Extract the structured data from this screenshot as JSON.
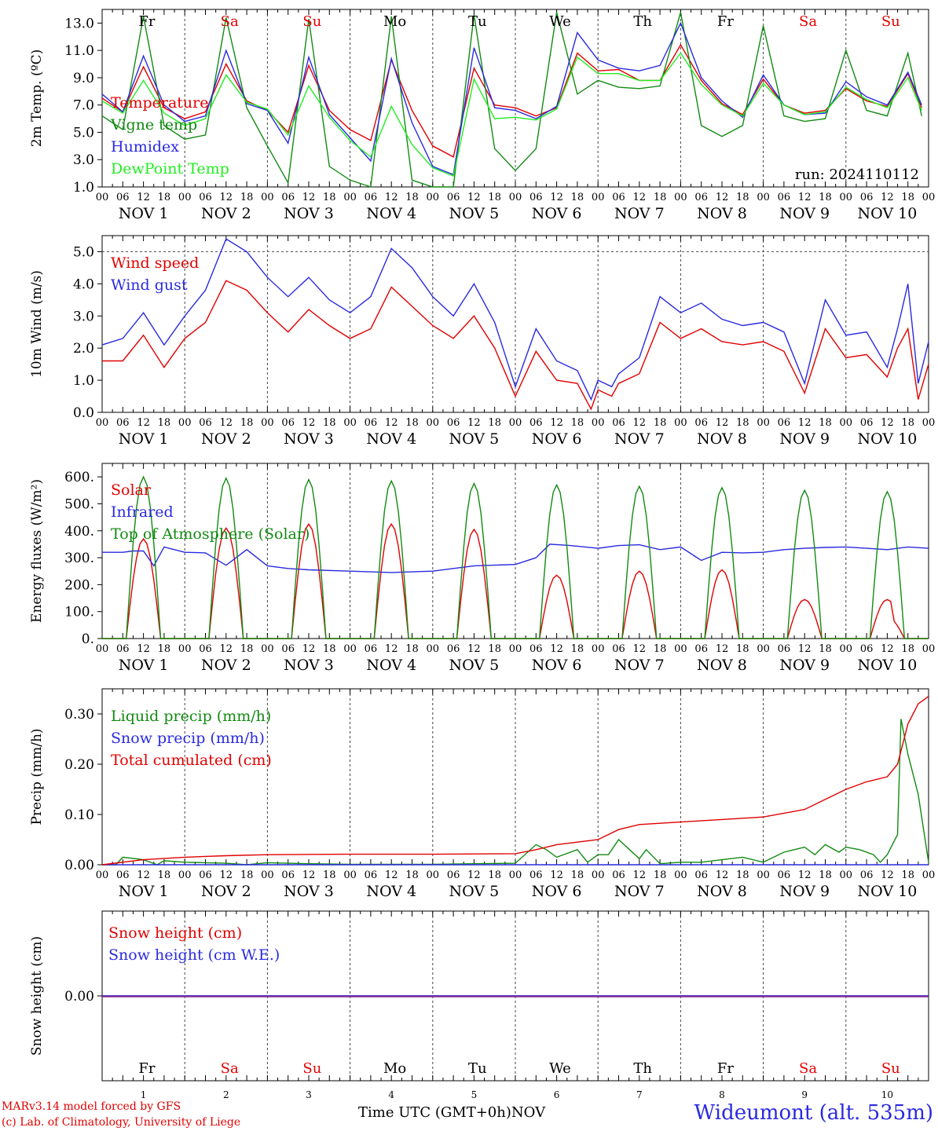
{
  "chart_data": [
    {
      "id": "temperature",
      "type": "line",
      "ylabel": "2m Temp. (ºC)",
      "ylim": [
        1.0,
        14.0
      ],
      "yticks": [
        "13.0",
        "11.0",
        "9.0",
        "7.0",
        "5.0",
        "3.0",
        "1.0"
      ],
      "grid": false,
      "legend_placement": "left",
      "annotation": "run: 2024110112",
      "day_names": [
        "Fr",
        "Sa",
        "Su",
        "Mo",
        "Tu",
        "We",
        "Th",
        "Fr",
        "Sa",
        "Su"
      ],
      "day_name_colors": [
        "#000000",
        "#e00000",
        "#e00000",
        "#000000",
        "#000000",
        "#000000",
        "#000000",
        "#000000",
        "#e00000",
        "#e00000"
      ],
      "x_unit": "hours since 2024-11-01 00 UTC",
      "series": [
        {
          "name": "Temperature",
          "color": "#e00000",
          "x": [
            0,
            6,
            12,
            18,
            24,
            30,
            36,
            42,
            48,
            54,
            60,
            66,
            72,
            78,
            84,
            90,
            96,
            102,
            108,
            114,
            120,
            126,
            132,
            138,
            144,
            150,
            156,
            162,
            168,
            174,
            180,
            186,
            192,
            198,
            204,
            210,
            216,
            222,
            228,
            234,
            238
          ],
          "y": [
            7.5,
            6.5,
            9.8,
            6.8,
            6.0,
            6.5,
            10.0,
            7.3,
            6.6,
            5.0,
            9.9,
            6.6,
            5.2,
            4.4,
            10.3,
            6.6,
            4.0,
            3.2,
            9.7,
            7.0,
            6.8,
            6.2,
            6.8,
            10.8,
            9.5,
            9.6,
            8.8,
            8.8,
            11.4,
            8.8,
            7.1,
            6.3,
            8.9,
            7.0,
            6.4,
            6.6,
            8.2,
            7.3,
            6.9,
            9.3,
            6.8
          ]
        },
        {
          "name": "Vigne temp",
          "color": "#128a12",
          "x": [
            0,
            6,
            12,
            18,
            24,
            30,
            36,
            42,
            48,
            54,
            60,
            66,
            72,
            78,
            84,
            90,
            96,
            102,
            108,
            114,
            120,
            126,
            132,
            138,
            144,
            150,
            156,
            162,
            168,
            174,
            180,
            186,
            192,
            198,
            204,
            210,
            216,
            222,
            228,
            234,
            238
          ],
          "y": [
            6.2,
            5.2,
            13.5,
            5.5,
            4.5,
            4.8,
            13.4,
            6.8,
            4.0,
            1.3,
            13.3,
            2.5,
            1.5,
            0.7,
            13.5,
            1.5,
            0.5,
            0.2,
            13.6,
            3.8,
            2.2,
            3.8,
            13.8,
            7.8,
            8.8,
            8.3,
            8.2,
            8.4,
            13.8,
            5.5,
            4.7,
            5.5,
            12.8,
            6.2,
            5.8,
            6.0,
            11.0,
            6.6,
            6.2,
            10.8,
            6.2
          ]
        },
        {
          "name": "Humidex",
          "color": "#2a2ae0",
          "x": [
            0,
            6,
            12,
            18,
            24,
            30,
            36,
            42,
            48,
            54,
            60,
            66,
            72,
            78,
            84,
            90,
            96,
            102,
            108,
            114,
            120,
            126,
            132,
            138,
            144,
            150,
            156,
            162,
            168,
            174,
            180,
            186,
            192,
            198,
            204,
            210,
            216,
            222,
            228,
            234,
            238
          ],
          "y": [
            7.8,
            6.5,
            10.6,
            7.0,
            5.8,
            6.2,
            11.0,
            7.1,
            6.6,
            4.2,
            10.5,
            6.3,
            4.6,
            2.9,
            10.4,
            5.7,
            2.5,
            1.9,
            11.2,
            6.8,
            6.6,
            6.0,
            6.9,
            12.3,
            10.3,
            9.7,
            9.5,
            9.9,
            13.0,
            9.0,
            7.3,
            6.1,
            9.2,
            7.0,
            6.3,
            6.4,
            8.7,
            7.6,
            7.0,
            9.4,
            7.0
          ]
        },
        {
          "name": "DewPoint Temp",
          "color": "#22ee22",
          "x": [
            0,
            6,
            12,
            18,
            24,
            30,
            36,
            42,
            48,
            54,
            60,
            66,
            72,
            78,
            84,
            90,
            96,
            102,
            108,
            114,
            120,
            126,
            132,
            138,
            144,
            150,
            156,
            162,
            168,
            174,
            180,
            186,
            192,
            198,
            204,
            210,
            216,
            222,
            228,
            234,
            238
          ],
          "y": [
            7.3,
            6.4,
            8.8,
            6.4,
            5.5,
            6.0,
            9.2,
            7.2,
            6.7,
            4.8,
            8.4,
            6.1,
            4.4,
            3.2,
            6.9,
            4.1,
            2.4,
            1.8,
            8.9,
            6.0,
            6.1,
            5.9,
            6.7,
            10.5,
            9.3,
            9.3,
            8.8,
            8.8,
            10.8,
            8.5,
            7.0,
            6.2,
            8.6,
            7.0,
            6.3,
            6.5,
            8.3,
            7.4,
            6.8,
            9.0,
            6.6
          ]
        }
      ]
    },
    {
      "id": "wind",
      "type": "line",
      "ylabel": "10m Wind (m/s)",
      "ylim": [
        0.0,
        5.5
      ],
      "yticks": [
        "5.0",
        "4.0",
        "3.0",
        "2.0",
        "1.0",
        "0.0"
      ],
      "reference_line": 5.0,
      "grid": false,
      "legend_placement": "left",
      "x_unit": "hours since 2024-11-01 00 UTC",
      "series": [
        {
          "name": "Wind speed",
          "color": "#e00000",
          "x": [
            0,
            6,
            12,
            18,
            24,
            30,
            36,
            42,
            48,
            54,
            60,
            66,
            72,
            78,
            84,
            90,
            96,
            102,
            108,
            114,
            120,
            126,
            132,
            138,
            142,
            144,
            148,
            150,
            156,
            162,
            168,
            174,
            180,
            186,
            192,
            198,
            204,
            210,
            216,
            222,
            228,
            231,
            234,
            237,
            240
          ],
          "y": [
            1.6,
            1.6,
            2.4,
            1.4,
            2.3,
            2.8,
            4.1,
            3.8,
            3.1,
            2.5,
            3.2,
            2.7,
            2.3,
            2.6,
            3.9,
            3.3,
            2.7,
            2.3,
            3.0,
            2.0,
            0.5,
            1.9,
            1.0,
            0.9,
            0.1,
            0.7,
            0.5,
            0.9,
            1.2,
            2.8,
            2.3,
            2.6,
            2.2,
            2.1,
            2.2,
            1.9,
            0.6,
            2.6,
            1.7,
            1.8,
            1.1,
            2.0,
            2.6,
            0.4,
            1.5
          ]
        },
        {
          "name": "Wind gust",
          "color": "#2a2ae0",
          "x": [
            0,
            6,
            12,
            18,
            24,
            30,
            36,
            42,
            48,
            54,
            60,
            66,
            72,
            78,
            84,
            90,
            96,
            102,
            108,
            114,
            120,
            126,
            132,
            138,
            142,
            144,
            148,
            150,
            156,
            162,
            168,
            174,
            180,
            186,
            192,
            198,
            204,
            210,
            216,
            222,
            228,
            231,
            234,
            237,
            240
          ],
          "y": [
            2.1,
            2.3,
            3.1,
            2.1,
            3.0,
            3.8,
            5.4,
            5.0,
            4.2,
            3.6,
            4.2,
            3.5,
            3.1,
            3.6,
            5.1,
            4.5,
            3.6,
            3.0,
            4.0,
            2.8,
            0.8,
            2.6,
            1.6,
            1.3,
            0.4,
            1.0,
            0.8,
            1.2,
            1.7,
            3.6,
            3.1,
            3.4,
            2.9,
            2.7,
            2.8,
            2.5,
            0.9,
            3.5,
            2.4,
            2.5,
            1.4,
            2.6,
            4.0,
            0.9,
            2.2
          ]
        }
      ]
    },
    {
      "id": "energy",
      "type": "line",
      "ylabel": "Energy fluxes (W/m²)",
      "ylim": [
        0,
        650
      ],
      "yticks": [
        "600.",
        "500.",
        "400.",
        "300.",
        "200.",
        "100.",
        "0."
      ],
      "grid": false,
      "legend_placement": "left",
      "x_unit": "hours since 2024-11-01 00 UTC",
      "daylight": {
        "start_hour": 7,
        "end_hour": 17
      },
      "series": [
        {
          "name": "Solar",
          "color": "#e00000",
          "peaks_by_day": [
            370,
            410,
            425,
            425,
            405,
            235,
            250,
            255,
            145,
            145
          ],
          "x": [],
          "y": []
        },
        {
          "name": "Infrared",
          "color": "#2a2ae0",
          "x": [
            0,
            6,
            9,
            12,
            15,
            18,
            24,
            30,
            36,
            42,
            48,
            54,
            60,
            72,
            84,
            96,
            108,
            120,
            126,
            130,
            136,
            144,
            150,
            156,
            162,
            168,
            174,
            180,
            186,
            192,
            198,
            204,
            210,
            216,
            222,
            228,
            234,
            240
          ],
          "y": [
            320,
            320,
            325,
            325,
            270,
            340,
            320,
            318,
            272,
            330,
            270,
            260,
            255,
            250,
            245,
            250,
            270,
            275,
            300,
            350,
            345,
            335,
            345,
            348,
            330,
            340,
            290,
            320,
            318,
            320,
            330,
            335,
            338,
            340,
            335,
            330,
            340,
            335
          ]
        },
        {
          "name": "Top of Atmosphere (Solar)",
          "color": "#128a12",
          "peaks_by_day": [
            600,
            595,
            590,
            585,
            575,
            570,
            565,
            560,
            550,
            545
          ],
          "x": [],
          "y": []
        }
      ]
    },
    {
      "id": "precip",
      "type": "line",
      "ylabel": "Precip (mm/h)",
      "ylim": [
        0.0,
        0.35
      ],
      "yticks": [
        "0.30",
        "0.20",
        "0.10",
        "0.00"
      ],
      "grid": false,
      "legend_placement": "left",
      "x_unit": "hours since 2024-11-01 00 UTC",
      "series": [
        {
          "name": "Liquid precip (mm/h)",
          "color": "#128a12",
          "x": [
            0,
            4,
            6,
            12,
            16,
            18,
            24,
            30,
            36,
            42,
            48,
            60,
            72,
            84,
            96,
            108,
            120,
            126,
            129,
            132,
            138,
            141,
            144,
            147,
            150,
            156,
            158,
            162,
            168,
            174,
            180,
            186,
            192,
            198,
            204,
            207,
            210,
            214,
            216,
            220,
            224,
            226,
            228,
            231,
            232,
            234,
            237,
            240
          ],
          "y": [
            0.0,
            0.0,
            0.015,
            0.01,
            0.0,
            0.008,
            0.005,
            0.004,
            0.003,
            0.0,
            0.004,
            0.002,
            0.001,
            0.001,
            0.001,
            0.002,
            0.003,
            0.04,
            0.03,
            0.015,
            0.03,
            0.005,
            0.02,
            0.02,
            0.05,
            0.012,
            0.03,
            0.002,
            0.005,
            0.005,
            0.01,
            0.015,
            0.005,
            0.025,
            0.035,
            0.02,
            0.04,
            0.025,
            0.035,
            0.03,
            0.02,
            0.005,
            0.02,
            0.06,
            0.29,
            0.22,
            0.14,
            0.005
          ]
        },
        {
          "name": "Snow precip (mm/h)",
          "color": "#2a2ae0",
          "x": [
            0,
            240
          ],
          "y": [
            0.0,
            0.0
          ]
        },
        {
          "name": "Total cumulated (cm)",
          "color": "#e00000",
          "x": [
            0,
            12,
            24,
            36,
            48,
            72,
            96,
            120,
            126,
            132,
            144,
            150,
            156,
            168,
            180,
            192,
            204,
            210,
            216,
            222,
            228,
            231,
            234,
            237,
            240
          ],
          "y": [
            0.0,
            0.01,
            0.015,
            0.018,
            0.02,
            0.021,
            0.021,
            0.022,
            0.03,
            0.04,
            0.05,
            0.07,
            0.08,
            0.085,
            0.09,
            0.095,
            0.11,
            0.13,
            0.15,
            0.165,
            0.175,
            0.2,
            0.28,
            0.32,
            0.335
          ]
        }
      ]
    },
    {
      "id": "snow",
      "type": "line",
      "ylabel": "Snow height (cm)",
      "ylim": [
        -1,
        1
      ],
      "yticks": [
        "0.00"
      ],
      "grid": false,
      "legend_placement": "left",
      "x_unit": "hours since 2024-11-01 00 UTC",
      "series": [
        {
          "name": "Snow height (cm)",
          "color": "#e00000",
          "x": [
            0,
            240
          ],
          "y": [
            0,
            0
          ]
        },
        {
          "name": "Snow height (cm W.E.)",
          "color": "#2a2ae0",
          "x": [
            0,
            240
          ],
          "y": [
            0,
            0
          ]
        }
      ]
    }
  ],
  "x_axis": {
    "hour_ticks": [
      "00",
      "06",
      "12",
      "18"
    ],
    "end_tick": "00",
    "date_labels": [
      "NOV  1",
      "NOV  2",
      "NOV  3",
      "NOV  4",
      "NOV  5",
      "NOV  6",
      "NOV  7",
      "NOV  8",
      "NOV  9",
      "NOV 10"
    ],
    "day_numbers": [
      "1",
      "2",
      "3",
      "4",
      "5",
      "6",
      "7",
      "8",
      "9",
      "10"
    ],
    "title": "Time UTC (GMT+0h)",
    "month": "NOV"
  },
  "footer": {
    "credit_line_1": "MARv3.14 model forced by GFS",
    "credit_line_2": "(c) Lab. of Climatology, University of Liege",
    "station": "Wideumont (alt. 535m)"
  },
  "colors": {
    "red": "#e00000",
    "green": "#128a12",
    "blue": "#2a2ae0",
    "lightgreen": "#22ee22",
    "purple": "#8a2a8a"
  }
}
